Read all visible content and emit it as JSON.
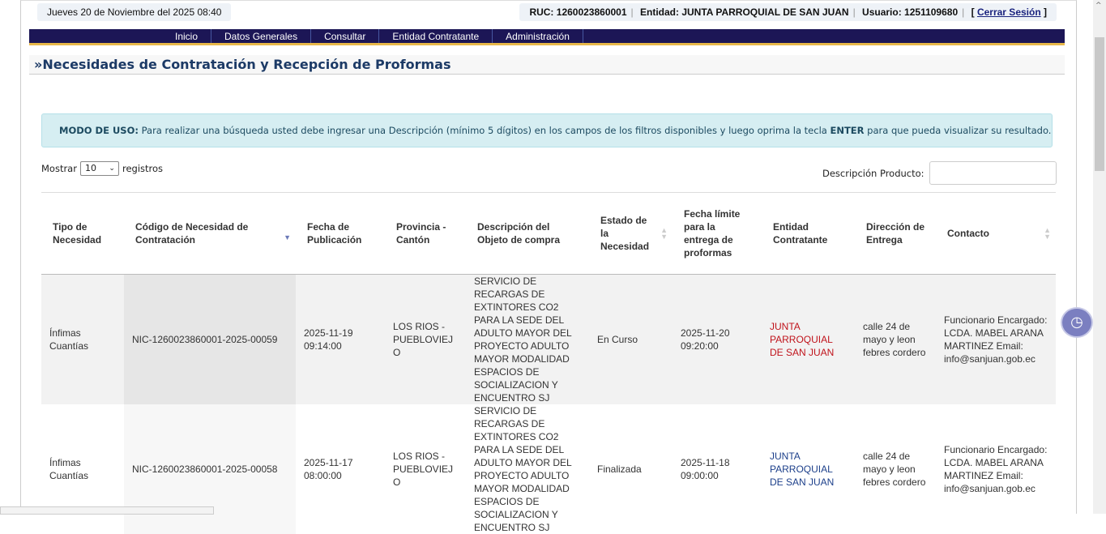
{
  "header": {
    "date": "Jueves 20 de Noviembre del 2025 08:40",
    "ruc": "RUC: 1260023860001",
    "entidad": "Entidad: JUNTA PARROQUIAL DE SAN JUAN",
    "usuario": "Usuario: 1251109680",
    "logout_open": "[",
    "logout": "Cerrar Sesión",
    "logout_close": "]"
  },
  "nav": [
    "Inicio",
    "Datos Generales",
    "Consultar",
    "Entidad Contratante",
    "Administración"
  ],
  "page_title": "»Necesidades de Contratación y Recepción de Proformas",
  "alert": {
    "label": "MODO DE USO:",
    "text_1": " Para realizar una búsqueda usted debe ingresar una Descripción (mínimo 5 dígitos) en los campos de los filtros disponibles y luego oprima la tecla ",
    "key": "ENTER",
    "text_2": " para que pueda visualizar su resultado."
  },
  "length": {
    "prefix": "Mostrar",
    "value": "10",
    "suffix": "registros"
  },
  "search": {
    "label": "Descripción Producto:",
    "value": ""
  },
  "columns": [
    "Tipo de Necesidad",
    "Código de Necesidad de Contratación",
    "Fecha de Publicación",
    "Provincia - Cantón",
    "Descripción del Objeto de compra",
    "Estado de la Necesidad",
    "Fecha límite para la entrega de proformas",
    "Entidad Contratante",
    "Dirección de Entrega",
    "Contacto"
  ],
  "rows": [
    {
      "tipo": "Ínfimas Cuantías",
      "codigo": "NIC-1260023860001-2025-00059",
      "fecha": "2025-11-19 09:14:00",
      "provincia": "LOS RIOS - PUEBLOVIEJO",
      "descripcion": "SERVICIO DE RECARGAS DE EXTINTORES CO2 PARA LA SEDE DEL ADULTO MAYOR DEL PROYECTO ADULTO MAYOR MODALIDAD ESPACIOS DE SOCIALIZACION Y ENCUENTRO SJ",
      "estado": "En Curso",
      "limite": "2025-11-20 09:20:00",
      "entidad": "JUNTA PARROQUIAL DE SAN JUAN",
      "direccion": "calle 24 de mayo y leon febres cordero",
      "contacto": "Funcionario Encargado: LCDA. MABEL ARANA MARTINEZ Email: info@sanjuan.gob.ec"
    },
    {
      "tipo": "Ínfimas Cuantías",
      "codigo": "NIC-1260023860001-2025-00058",
      "fecha": "2025-11-17 08:00:00",
      "provincia": "LOS RIOS - PUEBLOVIEJO",
      "descripcion": "SERVICIO DE RECARGAS DE EXTINTORES CO2 PARA LA SEDE DEL ADULTO MAYOR DEL PROYECTO ADULTO MAYOR MODALIDAD ESPACIOS DE SOCIALIZACION Y ENCUENTRO SJ",
      "estado": "Finalizada",
      "limite": "2025-11-18 09:00:00",
      "entidad": "JUNTA PARROQUIAL DE SAN JUAN",
      "direccion": "calle 24 de mayo y leon febres cordero",
      "contacto": "Funcionario Encargado: LCDA. MABEL ARANA MARTINEZ Email: info@sanjuan.gob.ec"
    }
  ],
  "colors": {
    "nav_bg": "#1c1656",
    "nav_accent": "#e8b84a",
    "entity_active": "#c0131b",
    "entity_done": "#1c3f8a"
  }
}
